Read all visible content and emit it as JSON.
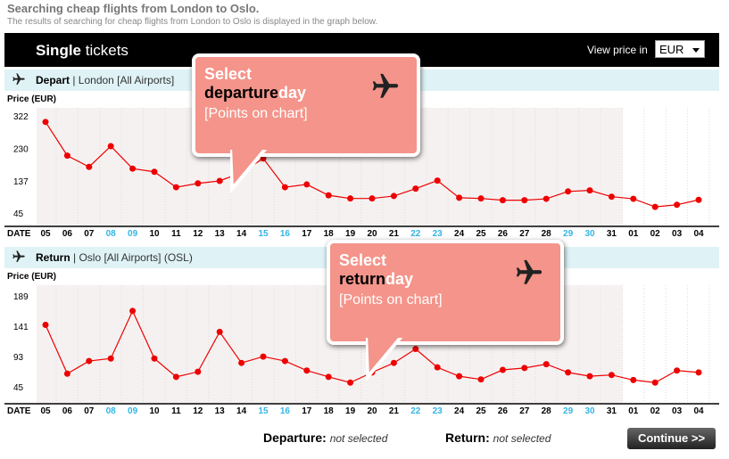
{
  "header": {
    "title": "Searching cheap flights from London to Oslo.",
    "subtitle": "The results of searching for cheap flights from London to Oslo is displayed in the graph below."
  },
  "topbar": {
    "title_bold": "Single",
    "title_rest": " tickets",
    "view_price_label": "View price in",
    "currency": "EUR"
  },
  "depart": {
    "label": "Depart",
    "location": " | London [All Airports] "
  },
  "return": {
    "label": "Return",
    "location": " | Oslo [All Airports] (OSL)"
  },
  "callout_depart": {
    "line1": "Select",
    "word": "departure",
    "suffix": "day",
    "line3": "[Points on chart]"
  },
  "callout_return": {
    "line1": "Select",
    "word": "return",
    "suffix": "day",
    "line3": "[Points on chart]"
  },
  "footer": {
    "departure_label": "Departure:",
    "departure_value": "not selected",
    "return_label": "Return:",
    "return_value": "not selected",
    "continue_label": "Continue >>"
  },
  "colors": {
    "line": "#ee0000",
    "weekend": "#33b5e5",
    "callout": "#f4948a"
  },
  "chart_data": [
    {
      "type": "line",
      "ylabel": "Price (EUR)",
      "xlabel": "DATE",
      "yticks": [
        45,
        137,
        230,
        322
      ],
      "ylim": [
        10,
        335
      ],
      "x": [
        "05",
        "06",
        "07",
        "08",
        "09",
        "10",
        "11",
        "12",
        "13",
        "14",
        "15",
        "16",
        "17",
        "18",
        "19",
        "20",
        "21",
        "22",
        "23",
        "24",
        "25",
        "26",
        "27",
        "28",
        "29",
        "30",
        "31",
        "01",
        "02",
        "03",
        "04"
      ],
      "weekend": [
        "08",
        "09",
        "15",
        "16",
        "22",
        "23",
        "29",
        "30"
      ],
      "values": [
        305,
        209,
        177,
        236,
        172,
        163,
        119,
        130,
        137,
        161,
        201,
        119,
        127,
        96,
        87,
        87,
        94,
        115,
        138,
        89,
        87,
        82,
        82,
        86,
        107,
        110,
        92,
        86,
        63,
        69,
        83
      ]
    },
    {
      "type": "line",
      "ylabel": "Price (EUR)",
      "xlabel": "DATE",
      "yticks": [
        45,
        93,
        141,
        189
      ],
      "ylim": [
        20,
        200
      ],
      "x": [
        "05",
        "06",
        "07",
        "08",
        "09",
        "10",
        "11",
        "12",
        "13",
        "14",
        "15",
        "16",
        "17",
        "18",
        "19",
        "20",
        "21",
        "22",
        "23",
        "24",
        "25",
        "26",
        "27",
        "28",
        "29",
        "30",
        "31",
        "01",
        "02",
        "03",
        "04"
      ],
      "weekend": [
        "08",
        "09",
        "15",
        "16",
        "22",
        "23",
        "29",
        "30"
      ],
      "values": [
        143,
        66,
        86,
        90,
        165,
        90,
        61,
        69,
        132,
        83,
        93,
        86,
        71,
        61,
        52,
        68,
        83,
        105,
        76,
        62,
        57,
        72,
        75,
        81,
        68,
        62,
        64,
        56,
        52,
        71,
        68
      ]
    }
  ]
}
